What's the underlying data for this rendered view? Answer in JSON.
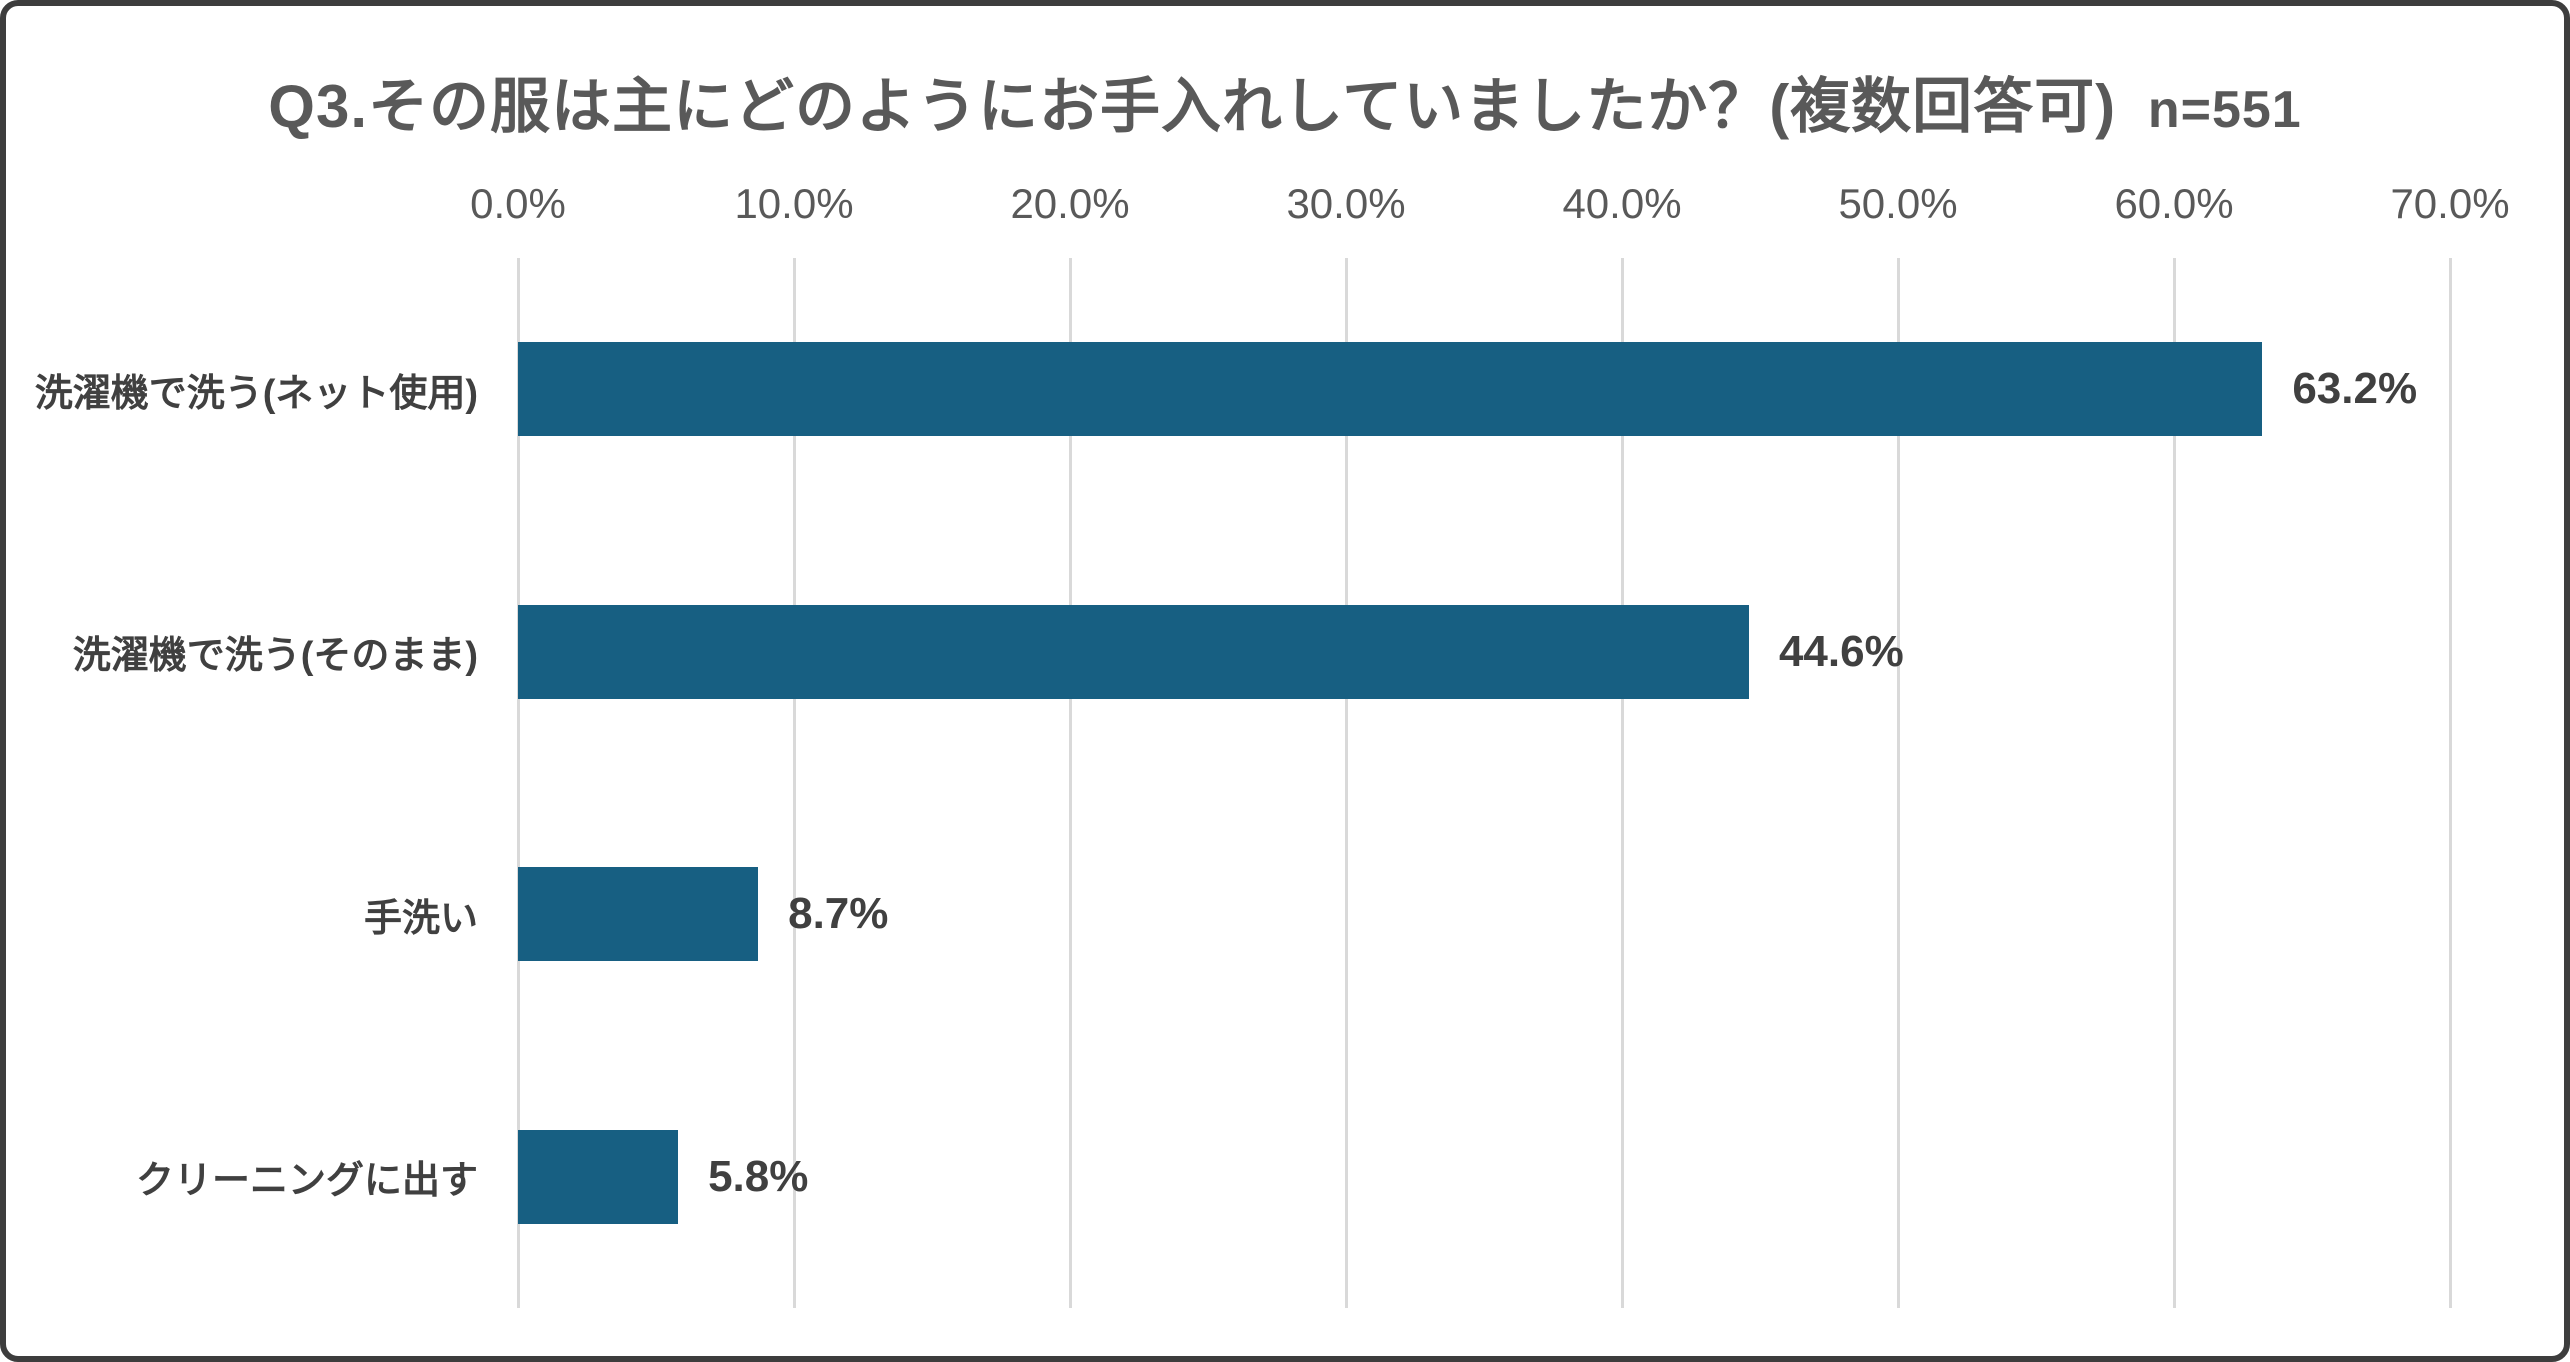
{
  "title": {
    "question": "Q3.その服は主にどのようにお手入れしていましたか？(複数回答可)",
    "sample_size": "n=551"
  },
  "chart_data": {
    "type": "bar",
    "orientation": "horizontal",
    "title": "Q3.その服は主にどのようにお手入れしていましたか？(複数回答可) n=551",
    "categories": [
      "洗濯機で洗う(ネット使用)",
      "洗濯機で洗う(そのまま)",
      "手洗い",
      "クリーニングに出す"
    ],
    "values": [
      63.2,
      44.6,
      8.7,
      5.8
    ],
    "value_labels": [
      "63.2%",
      "44.6%",
      "8.7%",
      "5.8%"
    ],
    "x_ticks": [
      "0.0%",
      "10.0%",
      "20.0%",
      "30.0%",
      "40.0%",
      "50.0%",
      "60.0%",
      "70.0%"
    ],
    "xlim": [
      0,
      70
    ],
    "tick_step": 10,
    "grid": true,
    "legend": "none",
    "axis_position": "top",
    "colors": {
      "bar": "#175F82",
      "gridline": "#D9D9D9",
      "title_text": "#595959",
      "tick_text": "#595959",
      "label_text": "#404040",
      "frame_border": "#3D3D3D",
      "background": "#FFFFFF"
    }
  }
}
